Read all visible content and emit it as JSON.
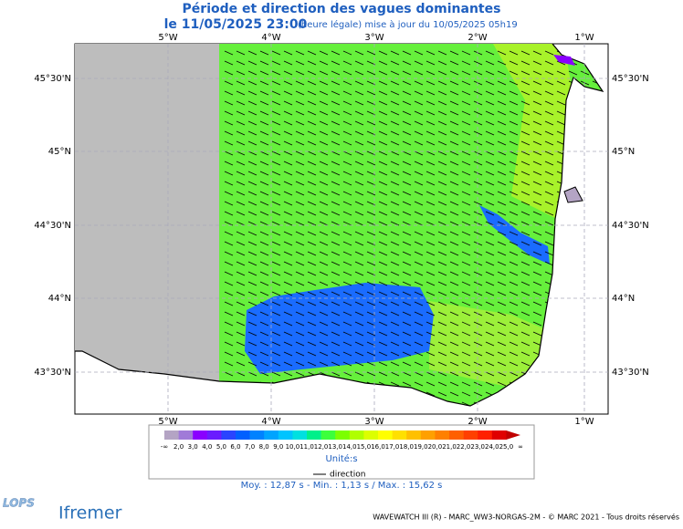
{
  "header": {
    "title": "Période et direction des vagues dominantes",
    "date": "le 11/05/2025 23:00",
    "note": "(heure légale) mise à jour du 10/05/2025 05h19"
  },
  "map": {
    "lon_labels": [
      "5°W",
      "4°W",
      "3°W",
      "2°W",
      "1°W"
    ],
    "lat_labels": [
      "45°30'N",
      "45°N",
      "44°30'N",
      "44°N",
      "43°30'N"
    ]
  },
  "legend": {
    "labels": [
      "-∞",
      "2,0",
      "3,0",
      "4,0",
      "5,0",
      "6,0",
      "7,0",
      "8,0",
      "9,0",
      "10,0",
      "11,0",
      "12,0",
      "13,0",
      "14,0",
      "15,0",
      "16,0",
      "17,0",
      "18,0",
      "19,0",
      "20,0",
      "21,0",
      "22,0",
      "23,0",
      "24,0",
      "25,0",
      "∞"
    ],
    "colors": [
      "#b4a4c4",
      "#a07ad8",
      "#8a00ff",
      "#6a1cff",
      "#2a44ff",
      "#0060ff",
      "#0082ff",
      "#00a4ff",
      "#00c4ff",
      "#00e0e0",
      "#00f08a",
      "#3cff3c",
      "#7cff00",
      "#b0ff00",
      "#dcff00",
      "#ffff00",
      "#ffe000",
      "#ffc000",
      "#ffa000",
      "#ff8000",
      "#ff6000",
      "#ff4000",
      "#ff2000",
      "#e00000",
      "#c00000"
    ],
    "unit": "Unité:s",
    "direction": "direction"
  },
  "stats": "Moy. : 12,87 s  -  Min. : 1,13 s / Max. : 15,62 s",
  "footer": "WAVEWATCH III (R) - MARC_WW3-NORGAS-2M - © MARC 2021 - Tous droits réservés",
  "logos": {
    "left": "LOPS",
    "right": "Ifremer"
  }
}
